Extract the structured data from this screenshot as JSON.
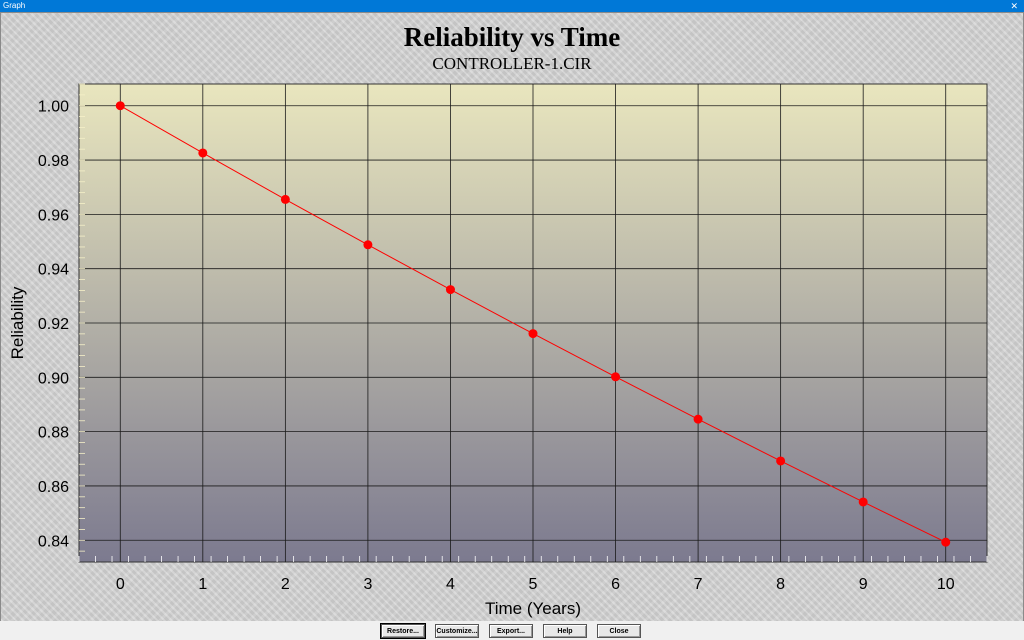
{
  "window": {
    "title": "Graph",
    "close_glyph": "✕"
  },
  "buttons": {
    "restore": "Restore...",
    "customize": "Customize...",
    "export": "Export...",
    "help": "Help",
    "close": "Close"
  },
  "chart_data": {
    "type": "line",
    "title": "Reliability vs Time",
    "subtitle": "CONTROLLER-1.CIR",
    "xlabel": "Time (Years)",
    "ylabel": "Reliability",
    "xlim": [
      -0.5,
      10.5
    ],
    "ylim": [
      0.832,
      1.008
    ],
    "xticks": [
      0,
      1,
      2,
      3,
      4,
      5,
      6,
      7,
      8,
      9,
      10
    ],
    "xtick_labels": [
      "0",
      "1",
      "2",
      "3",
      "4",
      "5",
      "6",
      "7",
      "8",
      "9",
      "10"
    ],
    "yticks": [
      0.84,
      0.86,
      0.88,
      0.9,
      0.92,
      0.94,
      0.96,
      0.98,
      1.0
    ],
    "ytick_labels": [
      "0.84",
      "0.86",
      "0.88",
      "0.90",
      "0.92",
      "0.94",
      "0.96",
      "0.98",
      "1.00"
    ],
    "grid": true,
    "line_color": "#ff0000",
    "plot_bg_top": "#e9e6be",
    "plot_bg_bottom": "#7c7a8f",
    "series": [
      {
        "x": [
          0,
          1,
          2,
          3,
          4,
          5,
          6,
          7,
          8,
          9,
          10
        ],
        "y": [
          1.0,
          0.9826,
          0.9655,
          0.9488,
          0.9323,
          0.9161,
          0.9002,
          0.8846,
          0.8692,
          0.8541,
          0.8393
        ]
      }
    ]
  }
}
